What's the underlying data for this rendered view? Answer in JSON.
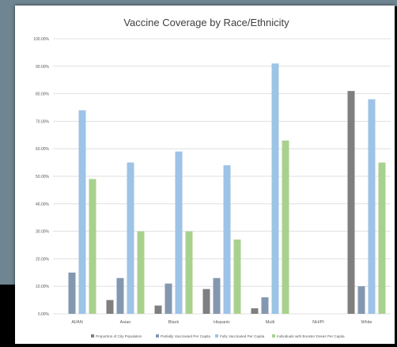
{
  "chart_data": {
    "type": "bar",
    "title": "Vaccine Coverage by Race/Ethnicity",
    "categories": [
      "AI/AN",
      "Asian",
      "Black",
      "Hispanic",
      "Multi",
      "NH/PI",
      "White"
    ],
    "y_ticks": [
      "0.00%",
      "10.00%",
      "20.00%",
      "30.00%",
      "40.00%",
      "50.00%",
      "60.00%",
      "70.00%",
      "80.00%",
      "90.00%",
      "100.00%"
    ],
    "ylim": [
      0,
      100
    ],
    "grid": true,
    "legend_position": "bottom",
    "series": [
      {
        "name": "Proportion of City Population",
        "color": "#7f7f7f",
        "values": [
          0,
          5,
          3,
          9,
          2,
          0,
          81
        ]
      },
      {
        "name": "Partially Vaccinated Per Capita",
        "color": "#8497b0",
        "values": [
          15,
          13,
          11,
          13,
          6,
          0,
          10
        ]
      },
      {
        "name": "Fully Vaccinated Per Capita",
        "color": "#9dc3e6",
        "values": [
          74,
          55,
          59,
          54,
          91,
          0,
          78
        ]
      },
      {
        "name": "Individuals with Booster Doses Per Capita",
        "color": "#a9d18e",
        "values": [
          49,
          30,
          30,
          27,
          63,
          0,
          55
        ]
      }
    ]
  }
}
